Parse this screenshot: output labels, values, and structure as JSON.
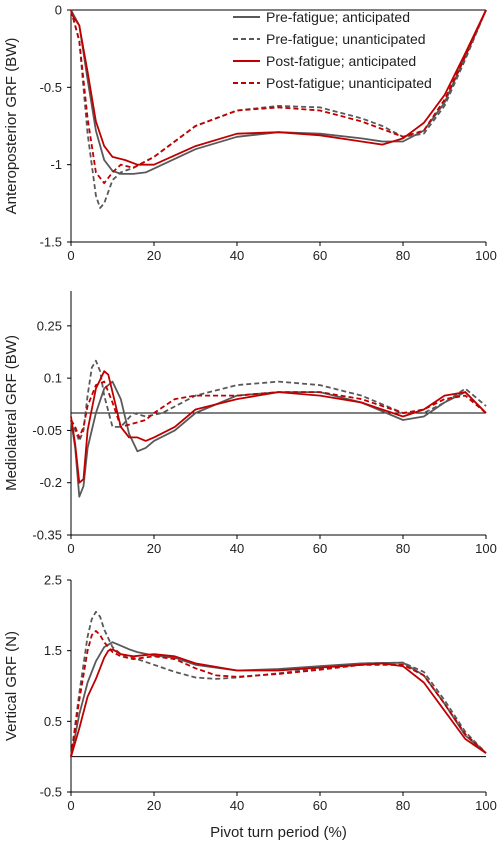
{
  "figure": {
    "xlabel": "Pivot turn period (%)",
    "legend": [
      {
        "label": "Pre-fatigue; anticipated",
        "color": "#595959",
        "dash": "solid"
      },
      {
        "label": "Pre-fatigue; unanticipated",
        "color": "#595959",
        "dash": "dashed"
      },
      {
        "label": "Post-fatigue; anticipated",
        "color": "#c00000",
        "dash": "solid"
      },
      {
        "label": "Post-fatigue; unanticipated",
        "color": "#c00000",
        "dash": "dashed"
      }
    ]
  },
  "chart_data": [
    {
      "type": "line",
      "ylabel": "Anteroposterior GRF (BW)",
      "xlabel": "",
      "xlim": [
        0,
        100
      ],
      "ylim": [
        -1.5,
        0
      ],
      "xticks": [
        0,
        20,
        40,
        60,
        80,
        100
      ],
      "yticks": [
        -1.5,
        -1,
        -0.5,
        0
      ],
      "ytick_labels": [
        "-1.5",
        "-1",
        "-0.5",
        "0"
      ],
      "legend_position": "top-right",
      "series": [
        {
          "name": "Pre-fatigue; anticipated",
          "color": "#595959",
          "dash": "solid",
          "x": [
            0,
            2,
            4,
            6,
            8,
            10,
            12,
            15,
            18,
            22,
            30,
            40,
            50,
            60,
            70,
            75,
            80,
            85,
            90,
            95,
            100
          ],
          "y": [
            0,
            -0.1,
            -0.45,
            -0.78,
            -0.97,
            -1.04,
            -1.06,
            -1.06,
            -1.05,
            -1.0,
            -0.9,
            -0.82,
            -0.79,
            -0.8,
            -0.83,
            -0.85,
            -0.85,
            -0.78,
            -0.6,
            -0.3,
            0
          ]
        },
        {
          "name": "Pre-fatigue; unanticipated",
          "color": "#595959",
          "dash": "dashed",
          "x": [
            0,
            2,
            4,
            6,
            7,
            8,
            10,
            12,
            15,
            20,
            30,
            40,
            50,
            60,
            70,
            75,
            80,
            85,
            90,
            95,
            100
          ],
          "y": [
            0,
            -0.2,
            -0.8,
            -1.2,
            -1.28,
            -1.25,
            -1.1,
            -1.05,
            -1.02,
            -0.95,
            -0.75,
            -0.65,
            -0.62,
            -0.63,
            -0.7,
            -0.75,
            -0.82,
            -0.8,
            -0.62,
            -0.32,
            0
          ]
        },
        {
          "name": "Post-fatigue; anticipated",
          "color": "#c00000",
          "dash": "solid",
          "x": [
            0,
            2,
            4,
            6,
            8,
            10,
            13,
            16,
            20,
            30,
            40,
            50,
            60,
            70,
            75,
            80,
            85,
            90,
            95,
            100
          ],
          "y": [
            -0.02,
            -0.1,
            -0.4,
            -0.72,
            -0.88,
            -0.95,
            -0.97,
            -1.0,
            -1.0,
            -0.88,
            -0.8,
            -0.79,
            -0.81,
            -0.85,
            -0.87,
            -0.83,
            -0.73,
            -0.55,
            -0.28,
            0
          ]
        },
        {
          "name": "Post-fatigue; unanticipated",
          "color": "#c00000",
          "dash": "dashed",
          "x": [
            0,
            2,
            4,
            6,
            8,
            10,
            12,
            15,
            20,
            30,
            40,
            50,
            60,
            70,
            75,
            80,
            85,
            90,
            95,
            100
          ],
          "y": [
            0,
            -0.2,
            -0.7,
            -1.05,
            -1.12,
            -1.05,
            -1.0,
            -1.02,
            -0.95,
            -0.75,
            -0.65,
            -0.63,
            -0.65,
            -0.72,
            -0.77,
            -0.82,
            -0.78,
            -0.58,
            -0.3,
            0
          ]
        }
      ]
    },
    {
      "type": "line",
      "ylabel": "Mediolateral GRF (BW)",
      "xlabel": "",
      "xlim": [
        0,
        100
      ],
      "ylim": [
        -0.35,
        0.35
      ],
      "xticks": [
        0,
        20,
        40,
        60,
        80,
        100
      ],
      "yticks": [
        -0.35,
        -0.2,
        -0.05,
        0.1,
        0.25
      ],
      "ytick_labels": [
        "-0.35",
        "-0.2",
        "-0.05",
        "0.1",
        "0.25"
      ],
      "series": [
        {
          "name": "Pre-fatigue; anticipated",
          "color": "#595959",
          "dash": "solid",
          "x": [
            0,
            1,
            2,
            3,
            4,
            6,
            8,
            10,
            12,
            14,
            16,
            18,
            20,
            25,
            30,
            40,
            50,
            60,
            70,
            80,
            85,
            90,
            95,
            100
          ],
          "y": [
            -0.02,
            -0.1,
            -0.24,
            -0.21,
            -0.1,
            0.0,
            0.07,
            0.09,
            0.04,
            -0.06,
            -0.11,
            -0.1,
            -0.08,
            -0.05,
            0.0,
            0.05,
            0.06,
            0.06,
            0.03,
            -0.02,
            -0.01,
            0.03,
            0.06,
            0.0
          ]
        },
        {
          "name": "Pre-fatigue; unanticipated",
          "color": "#595959",
          "dash": "dashed",
          "x": [
            0,
            1,
            2,
            3,
            4,
            5,
            6,
            7,
            8,
            10,
            12,
            15,
            18,
            22,
            30,
            40,
            50,
            60,
            70,
            80,
            85,
            90,
            95,
            100
          ],
          "y": [
            -0.02,
            -0.05,
            -0.08,
            -0.05,
            0.05,
            0.13,
            0.15,
            0.12,
            0.05,
            -0.04,
            -0.04,
            0.0,
            -0.01,
            0.0,
            0.05,
            0.08,
            0.09,
            0.08,
            0.05,
            0.0,
            0.0,
            0.03,
            0.07,
            0.02
          ]
        },
        {
          "name": "Post-fatigue; anticipated",
          "color": "#c00000",
          "dash": "solid",
          "x": [
            0,
            1,
            2,
            3,
            4,
            6,
            8,
            9,
            10,
            12,
            14,
            16,
            18,
            20,
            25,
            30,
            40,
            50,
            60,
            70,
            80,
            85,
            90,
            95,
            100
          ],
          "y": [
            -0.01,
            -0.09,
            -0.2,
            -0.19,
            -0.05,
            0.07,
            0.12,
            0.11,
            0.06,
            -0.04,
            -0.07,
            -0.07,
            -0.08,
            -0.07,
            -0.04,
            0.01,
            0.04,
            0.06,
            0.05,
            0.03,
            -0.01,
            0.01,
            0.05,
            0.06,
            0.0
          ]
        },
        {
          "name": "Post-fatigue; unanticipated",
          "color": "#c00000",
          "dash": "dashed",
          "x": [
            0,
            1,
            2,
            3,
            4,
            6,
            8,
            10,
            12,
            15,
            18,
            20,
            25,
            30,
            40,
            50,
            60,
            70,
            80,
            85,
            90,
            95,
            100
          ],
          "y": [
            -0.02,
            -0.04,
            -0.07,
            -0.04,
            0.02,
            0.08,
            0.09,
            0.03,
            -0.04,
            -0.03,
            -0.02,
            0.0,
            0.04,
            0.05,
            0.05,
            0.06,
            0.06,
            0.04,
            0.0,
            0.01,
            0.04,
            0.05,
            0.0
          ]
        }
      ]
    },
    {
      "type": "line",
      "ylabel": "Vertical GRF (N)",
      "xlabel": "Pivot turn period (%)",
      "xlim": [
        0,
        100
      ],
      "ylim": [
        -0.5,
        2.5
      ],
      "xticks": [
        0,
        20,
        40,
        60,
        80,
        100
      ],
      "yticks": [
        -0.5,
        0.5,
        1.5,
        2.5
      ],
      "ytick_labels": [
        "-0.5",
        "0.5",
        "1.5",
        "2.5"
      ],
      "series": [
        {
          "name": "Pre-fatigue; anticipated",
          "color": "#595959",
          "dash": "solid",
          "x": [
            0,
            2,
            4,
            6,
            8,
            10,
            12,
            14,
            16,
            20,
            25,
            30,
            40,
            50,
            60,
            70,
            80,
            85,
            90,
            95,
            100
          ],
          "y": [
            0,
            0.6,
            1.05,
            1.35,
            1.55,
            1.62,
            1.57,
            1.52,
            1.48,
            1.43,
            1.4,
            1.3,
            1.22,
            1.24,
            1.28,
            1.32,
            1.33,
            1.15,
            0.75,
            0.3,
            0.05
          ]
        },
        {
          "name": "Pre-fatigue; unanticipated",
          "color": "#595959",
          "dash": "dashed",
          "x": [
            0,
            2,
            4,
            5,
            6,
            7,
            8,
            10,
            12,
            15,
            20,
            25,
            30,
            35,
            40,
            50,
            60,
            70,
            80,
            85,
            90,
            95,
            100
          ],
          "y": [
            0,
            0.9,
            1.7,
            1.95,
            2.05,
            1.98,
            1.8,
            1.55,
            1.45,
            1.4,
            1.3,
            1.2,
            1.12,
            1.1,
            1.12,
            1.18,
            1.25,
            1.32,
            1.33,
            1.2,
            0.8,
            0.35,
            0.05
          ]
        },
        {
          "name": "Post-fatigue; anticipated",
          "color": "#c00000",
          "dash": "solid",
          "x": [
            0,
            2,
            4,
            6,
            8,
            9,
            10,
            12,
            15,
            20,
            25,
            30,
            40,
            50,
            60,
            70,
            75,
            80,
            85,
            90,
            95,
            100
          ],
          "y": [
            0,
            0.4,
            0.85,
            1.1,
            1.4,
            1.5,
            1.52,
            1.45,
            1.42,
            1.45,
            1.42,
            1.32,
            1.22,
            1.22,
            1.26,
            1.3,
            1.32,
            1.28,
            1.05,
            0.65,
            0.25,
            0.05
          ]
        },
        {
          "name": "Post-fatigue; unanticipated",
          "color": "#c00000",
          "dash": "dashed",
          "x": [
            0,
            2,
            4,
            5,
            6,
            7,
            8,
            10,
            12,
            15,
            20,
            25,
            30,
            35,
            40,
            50,
            60,
            70,
            80,
            85,
            90,
            95,
            100
          ],
          "y": [
            0,
            0.8,
            1.5,
            1.72,
            1.78,
            1.72,
            1.62,
            1.48,
            1.42,
            1.38,
            1.42,
            1.38,
            1.25,
            1.15,
            1.13,
            1.17,
            1.23,
            1.3,
            1.3,
            1.15,
            0.75,
            0.32,
            0.05
          ]
        }
      ]
    }
  ]
}
